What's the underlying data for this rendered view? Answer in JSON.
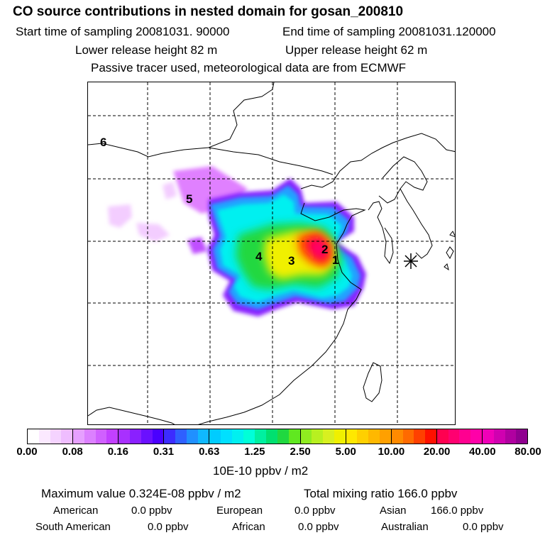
{
  "header": {
    "title": "CO  source contributions in nested domain for gosan_200810",
    "start_time": "Start time of sampling 20081031. 90000",
    "end_time": "End time of sampling 20081031.120000",
    "lower_height": "Lower release height   82 m",
    "upper_height": "Upper release height   62 m",
    "note": "Passive tracer used, meteorological data are from ECMWF"
  },
  "map": {
    "region_labels": [
      "6",
      "5",
      "4",
      "3",
      "2",
      "1"
    ],
    "receptor_marker": "star-marker"
  },
  "colorbar": {
    "ticks": [
      "0.00",
      "0.08",
      "0.16",
      "0.31",
      "0.63",
      "1.25",
      "2.50",
      "5.00",
      "10.00",
      "20.00",
      "40.00",
      "80.00"
    ],
    "unit": "10E-10 ppbv / m2",
    "segment_colors": [
      [
        "#ffffff",
        "#fbe9ff",
        "#f5d3ff",
        "#efbdff"
      ],
      [
        "#e6a0ff",
        "#dc80ff",
        "#d060ff",
        "#c240ff"
      ],
      [
        "#a830ff",
        "#8a20ff",
        "#6a10ff",
        "#4a00ff"
      ],
      [
        "#3c2cff",
        "#2f60ff",
        "#2090ff",
        "#10b8ff"
      ],
      [
        "#00ccff",
        "#00e0ff",
        "#00f0f0",
        "#00ffd8"
      ],
      [
        "#00f0a0",
        "#00e070",
        "#20d840",
        "#60e820"
      ],
      [
        "#90ec20",
        "#b8f020",
        "#d8f020",
        "#f0f000"
      ],
      [
        "#ffe800",
        "#ffd000",
        "#ffb800",
        "#ffa000"
      ],
      [
        "#ff8a00",
        "#ff6a00",
        "#ff4000",
        "#ff1000"
      ],
      [
        "#ff0050",
        "#ff0070",
        "#ff0090",
        "#ff00a8"
      ],
      [
        "#f000b8",
        "#d000b0",
        "#b000a0",
        "#900090"
      ]
    ]
  },
  "stats": {
    "max_label": "Maximum value  0.324E-08 ppbv / m2",
    "total_label": "Total mixing ratio      166.0 ppbv",
    "row1": [
      {
        "name": "American",
        "value": "0.0 ppbv"
      },
      {
        "name": "European",
        "value": "0.0 ppbv"
      },
      {
        "name": "Asian",
        "value": "166.0 ppbv"
      }
    ],
    "row2": [
      {
        "name": "South American",
        "value": "0.0 ppbv"
      },
      {
        "name": "African",
        "value": "0.0 ppbv"
      },
      {
        "name": "Australian",
        "value": "0.0 ppbv"
      }
    ]
  }
}
